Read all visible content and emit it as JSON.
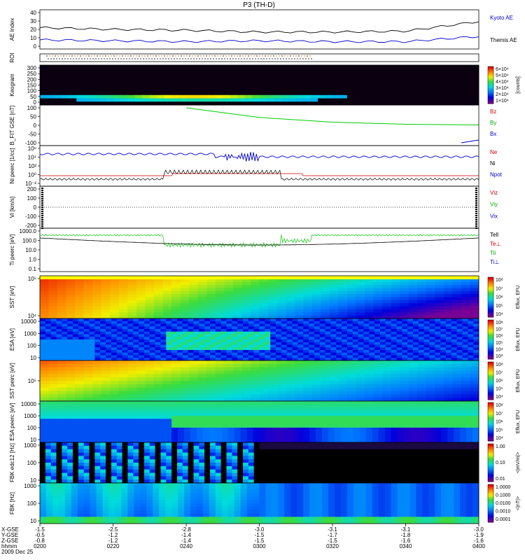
{
  "title": "P3 (TH-D)",
  "footer": {
    "row_labels": [
      "X-GSE",
      "Y-GSE",
      "Z-GSE",
      "hhmm",
      "2009 Dec 25"
    ],
    "ticks": [
      {
        "x": "-1.5",
        "y": "-0.5",
        "z": "-0.8",
        "t": "0200"
      },
      {
        "x": "-2.5",
        "y": "-1.2",
        "z": "-1.2",
        "t": "0220"
      },
      {
        "x": "-2.8",
        "y": "-1.4",
        "z": "-1.4",
        "t": "0240"
      },
      {
        "x": "-3.0",
        "y": "-1.5",
        "z": "-1.5",
        "t": "0300"
      },
      {
        "x": "-3.1",
        "y": "-1.7",
        "z": "-1.5",
        "t": "0320"
      },
      {
        "x": "-3.1",
        "y": "-1.8",
        "z": "-1.6",
        "t": "0340"
      },
      {
        "x": "-3.0",
        "y": "-1.9",
        "z": "-1.6",
        "t": "0400"
      }
    ]
  },
  "chart_data": [
    {
      "id": "ae",
      "type": "line",
      "ylabel": "AE Index",
      "yticks": [
        "40",
        "30",
        "20",
        "10",
        "0"
      ],
      "ylim": [
        0,
        40
      ],
      "legend": [
        {
          "label": "Kyoto AE",
          "color": "#0000cc"
        },
        {
          "label": "Themis AE",
          "color": "#000000"
        }
      ],
      "x_hhmm": [
        "0200",
        "0220",
        "0240",
        "0300",
        "0320",
        "0340",
        "0400"
      ],
      "series": [
        {
          "name": "Themis AE",
          "color": "#000000",
          "values": [
            22,
            20,
            19,
            17,
            17,
            18,
            29
          ]
        },
        {
          "name": "Kyoto AE",
          "color": "#0000cc",
          "values": [
            8,
            7,
            6,
            7,
            6,
            6,
            12
          ]
        }
      ]
    },
    {
      "id": "roi",
      "type": "scatter",
      "ylabel": "ROI"
    },
    {
      "id": "keogram",
      "type": "heatmap",
      "ylabel": "Keogram",
      "yticks": [
        "300",
        "250",
        "200",
        "150",
        "100",
        "50",
        "0"
      ],
      "ylim": [
        0,
        300
      ],
      "colorbar": {
        "ticks": [
          "6×10⁴",
          "5×10⁴",
          "4×10⁴",
          "3×10⁴",
          "2×10⁴",
          "1×10⁴"
        ],
        "unit": "[counts]"
      }
    },
    {
      "id": "bfit",
      "type": "line",
      "ylabel": "B_FIT GSE [nT]",
      "yticks": [
        "100",
        "50",
        "0",
        "-50",
        "-100"
      ],
      "ylim": [
        -100,
        100
      ],
      "legend": [
        {
          "label": "Bz",
          "color": "#cc0000"
        },
        {
          "label": "By",
          "color": "#00aa00"
        },
        {
          "label": "Bx",
          "color": "#0000cc"
        }
      ],
      "series": [
        {
          "name": "By",
          "color": "#00cc00",
          "x_hhmm": [
            "0240",
            "0300",
            "0320",
            "0340",
            "0400"
          ],
          "values": [
            100,
            45,
            18,
            6,
            2
          ]
        }
      ]
    },
    {
      "id": "density",
      "type": "line",
      "ylabel": "Ni peerc [1/cc]",
      "yticks": [
        "10⁶",
        "10⁴",
        "10²",
        "10⁰",
        "10⁻²"
      ],
      "legend": [
        {
          "label": "Ne",
          "color": "#cc0000"
        },
        {
          "label": "Ni",
          "color": "#000000"
        },
        {
          "label": "Npot",
          "color": "#0000cc"
        }
      ]
    },
    {
      "id": "velocity",
      "type": "line",
      "ylabel": "Vi [km/s]",
      "yticks": [
        "200",
        "100",
        "0",
        "-100",
        "-200"
      ],
      "ylim": [
        -250,
        250
      ],
      "legend": [
        {
          "label": "Viz",
          "color": "#cc0000"
        },
        {
          "label": "Viy",
          "color": "#00aa00"
        },
        {
          "label": "Vix",
          "color": "#0000cc"
        }
      ]
    },
    {
      "id": "temperature",
      "type": "line",
      "ylabel": "Ti peerc [eV]",
      "yticks": [
        "1000.0",
        "100.0",
        "10.0",
        "1.0",
        "0.1"
      ],
      "legend": [
        {
          "label": "Tell",
          "color": "#000000"
        },
        {
          "label": "Te⊥",
          "color": "#cc0000"
        },
        {
          "label": "Tii",
          "color": "#00aa00"
        },
        {
          "label": "Ti⊥",
          "color": "#0000cc"
        }
      ]
    },
    {
      "id": "sst1",
      "type": "heatmap",
      "ylabel": "SST [eV]",
      "yticks": [
        "10⁵",
        "10⁴"
      ],
      "colorbar": {
        "ticks": [
          "10⁸",
          "10⁷",
          "10⁶",
          "10⁵",
          "10⁴"
        ],
        "unit": "Eflux, EFU"
      }
    },
    {
      "id": "esa1",
      "type": "heatmap",
      "ylabel": "ESA [eV]",
      "yticks": [
        "10000",
        "1000",
        "100",
        "10"
      ],
      "colorbar": {
        "ticks": [
          "10⁸",
          "10⁷",
          "10⁶",
          "10⁵",
          "10⁴",
          "10³"
        ],
        "unit": "Eflux, EFU"
      }
    },
    {
      "id": "sst2",
      "type": "heatmap",
      "ylabel": "SST peirc [eV]",
      "yticks": [
        "10⁵"
      ],
      "colorbar": {
        "ticks": [
          "10⁸",
          "10⁷",
          "10⁶",
          "10⁵",
          "10⁴"
        ],
        "unit": "Eflux, EFU"
      }
    },
    {
      "id": "esa2",
      "type": "heatmap",
      "ylabel": "ESA peerc [eV]",
      "yticks": [
        "10000",
        "1000",
        "100",
        "10"
      ],
      "colorbar": {
        "ticks": [
          "10⁸",
          "10⁷",
          "10⁶",
          "10⁵",
          "10⁴"
        ],
        "unit": "Eflux, EFU"
      }
    },
    {
      "id": "fbk1",
      "type": "heatmap",
      "ylabel": "FBK edc12 [Hz]",
      "yticks": [
        "1000",
        "100",
        "10"
      ],
      "colorbar": {
        "ticks": [
          "1.00",
          "0.10",
          "0.01"
        ],
        "unit": "<|mV/m|>"
      }
    },
    {
      "id": "fbk2",
      "type": "heatmap",
      "ylabel": "FBK [Hz]",
      "yticks": [
        "1000",
        "100",
        "10"
      ],
      "colorbar": {
        "ticks": [
          "1.0000",
          "0.1000",
          "0.0100",
          "0.0010",
          "0.0001"
        ],
        "unit": "<|nT|>"
      }
    }
  ]
}
